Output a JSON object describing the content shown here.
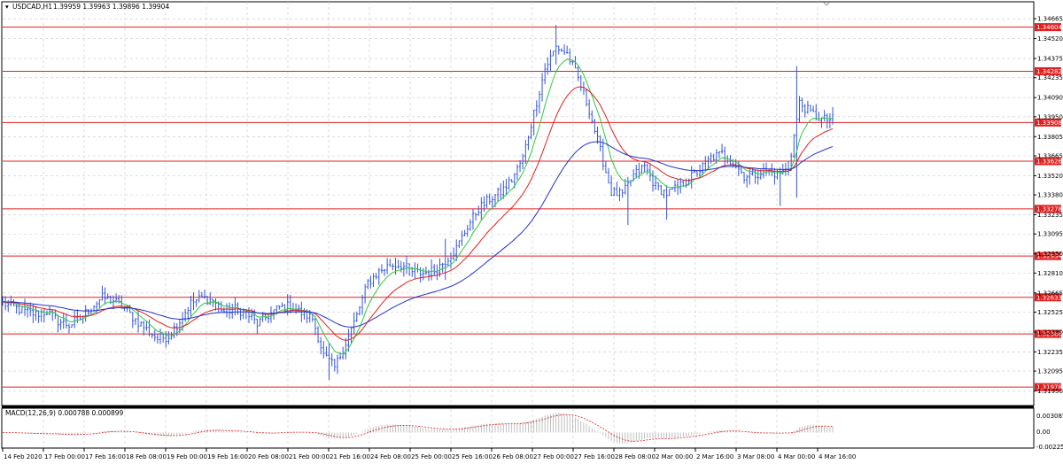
{
  "header": {
    "symbol": "USDCAD,H1",
    "ohlc": "1.39959 1.39963 1.39896 1.39904"
  },
  "colors": {
    "price": "#3355dd",
    "ma_fast": "#2ecc40",
    "ma_mid": "#e02020",
    "ma_slow": "#2233cc",
    "level_line": "#e02020",
    "level_label_bg": "#e02020",
    "macd_hist": "#b0b0b0",
    "macd_signal": "#e02020",
    "grid": "#c8c8c8"
  },
  "macd_panel": {
    "label": "MACD(12,26,9) 0.000788 0.000899",
    "ticks": [
      "0.003085",
      "0.00",
      "-0.002259"
    ]
  },
  "chart_data": {
    "type": "line",
    "title": "USDCAD,H1",
    "y_range": [
      1.3185,
      1.3475
    ],
    "y_ticks": [
      "1.34665",
      "1.34520",
      "1.34375",
      "1.34235",
      "1.34090",
      "1.33950",
      "1.33805",
      "1.33665",
      "1.33520",
      "1.33380",
      "1.33235",
      "1.33095",
      "1.32950",
      "1.32810",
      "1.32665",
      "1.32525",
      "1.32380",
      "1.32235",
      "1.32095",
      "1.31950"
    ],
    "x_ticks": [
      "14 Feb 2020",
      "17 Feb 00:00",
      "17 Feb 16:00",
      "18 Feb 08:00",
      "19 Feb 00:00",
      "19 Feb 16:00",
      "20 Feb 08:00",
      "21 Feb 00:00",
      "21 Feb 16:00",
      "24 Feb 08:00",
      "25 Feb 00:00",
      "25 Feb 16:00",
      "26 Feb 08:00",
      "27 Feb 00:00",
      "27 Feb 16:00",
      "28 Feb 08:00",
      "2 Mar 00:00",
      "2 Mar 16:00",
      "3 Mar 08:00",
      "4 Mar 00:00",
      "4 Mar 16:00"
    ],
    "levels": [
      {
        "value": 1.34604,
        "label": "1.34604"
      },
      {
        "value": 1.34282,
        "label": "1.34282"
      },
      {
        "value": 1.33908,
        "label": "1.33908"
      },
      {
        "value": 1.33626,
        "label": "1.33626"
      },
      {
        "value": 1.33278,
        "label": "1.33278"
      },
      {
        "value": 1.32934,
        "label": "1.32934"
      },
      {
        "value": 1.32633,
        "label": "1.32633"
      },
      {
        "value": 1.32366,
        "label": "1.32366"
      },
      {
        "value": 1.31978,
        "label": "1.31978"
      }
    ],
    "price_anchors": [
      [
        0,
        1.3259
      ],
      [
        4,
        1.3256
      ],
      [
        8,
        1.3253
      ],
      [
        12,
        1.3251
      ],
      [
        16,
        1.3253
      ],
      [
        20,
        1.3246
      ],
      [
        24,
        1.3243
      ],
      [
        28,
        1.3248
      ],
      [
        32,
        1.3256
      ],
      [
        36,
        1.3263
      ],
      [
        40,
        1.3261
      ],
      [
        44,
        1.3255
      ],
      [
        48,
        1.3247
      ],
      [
        52,
        1.324
      ],
      [
        56,
        1.3233
      ],
      [
        60,
        1.3235
      ],
      [
        64,
        1.3246
      ],
      [
        68,
        1.3259
      ],
      [
        72,
        1.3263
      ],
      [
        76,
        1.3261
      ],
      [
        80,
        1.3253
      ],
      [
        84,
        1.3255
      ],
      [
        88,
        1.3252
      ],
      [
        92,
        1.3244
      ],
      [
        96,
        1.325
      ],
      [
        100,
        1.3256
      ],
      [
        104,
        1.3257
      ],
      [
        108,
        1.3252
      ],
      [
        112,
        1.3248
      ],
      [
        116,
        1.3221
      ],
      [
        120,
        1.3212
      ],
      [
        124,
        1.323
      ],
      [
        128,
        1.325
      ],
      [
        132,
        1.3274
      ],
      [
        136,
        1.3282
      ],
      [
        140,
        1.3287
      ],
      [
        144,
        1.3287
      ],
      [
        148,
        1.3282
      ],
      [
        152,
        1.3281
      ],
      [
        156,
        1.3283
      ],
      [
        160,
        1.329
      ],
      [
        164,
        1.3299
      ],
      [
        168,
        1.3315
      ],
      [
        172,
        1.3328
      ],
      [
        176,
        1.3335
      ],
      [
        180,
        1.334
      ],
      [
        184,
        1.3349
      ],
      [
        188,
        1.3365
      ],
      [
        192,
        1.3398
      ],
      [
        196,
        1.343
      ],
      [
        200,
        1.3446
      ],
      [
        204,
        1.3441
      ],
      [
        208,
        1.3423
      ],
      [
        212,
        1.34
      ],
      [
        216,
        1.337
      ],
      [
        220,
        1.334
      ],
      [
        224,
        1.3338
      ],
      [
        228,
        1.3352
      ],
      [
        232,
        1.3359
      ],
      [
        236,
        1.3344
      ],
      [
        240,
        1.3339
      ],
      [
        244,
        1.3343
      ],
      [
        248,
        1.335
      ],
      [
        252,
        1.3356
      ],
      [
        256,
        1.3365
      ],
      [
        260,
        1.3368
      ],
      [
        264,
        1.3362
      ],
      [
        268,
        1.3352
      ],
      [
        272,
        1.3353
      ],
      [
        276,
        1.3356
      ],
      [
        280,
        1.3353
      ],
      [
        284,
        1.3357
      ],
      [
        288,
        1.3405
      ],
      [
        292,
        1.3398
      ],
      [
        296,
        1.3393
      ],
      [
        300,
        1.3393
      ]
    ],
    "bar_count": 301,
    "macd_range": [
      -0.002259,
      0.003085
    ],
    "series": [
      {
        "name": "price",
        "kind": "ohlc"
      },
      {
        "name": "",
        "kind": "ma",
        "period": 8
      },
      {
        "name": "",
        "kind": "ma",
        "period": 21
      },
      {
        "name": "",
        "kind": "ma",
        "period": 55
      }
    ]
  }
}
